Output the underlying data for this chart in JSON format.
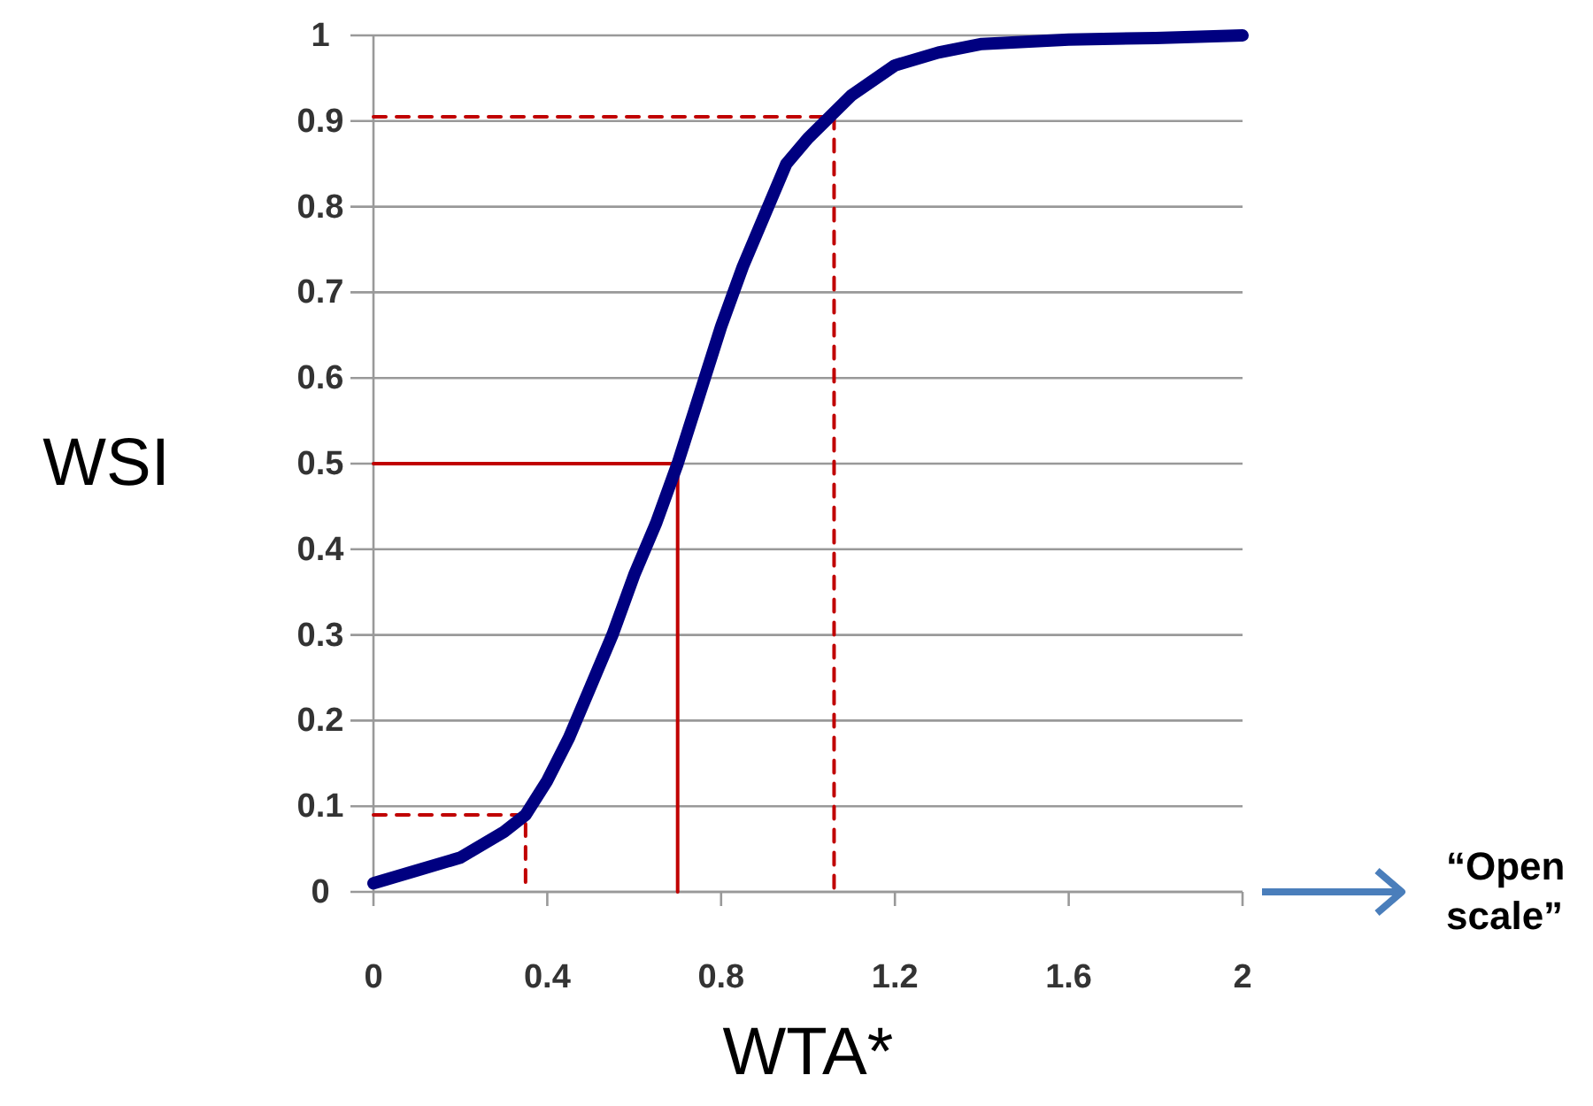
{
  "chart_data": {
    "type": "line",
    "xlabel": "WTA*",
    "ylabel": "WSI",
    "xlim": [
      0,
      2
    ],
    "ylim": [
      0,
      1
    ],
    "xticks": [
      0,
      0.4,
      0.8,
      1.2,
      1.6,
      2
    ],
    "yticks": [
      0,
      0.1,
      0.2,
      0.3,
      0.4,
      0.5,
      0.6,
      0.7,
      0.8,
      0.9,
      1
    ],
    "grid": "y",
    "marker": "none",
    "annotations": [
      "“Open scale”"
    ],
    "series": [
      {
        "color": "#000080",
        "line_style": "solid",
        "x": [
          0,
          0.1,
          0.2,
          0.3,
          0.35,
          0.4,
          0.45,
          0.5,
          0.55,
          0.6,
          0.65,
          0.7,
          0.75,
          0.8,
          0.85,
          0.9,
          0.95,
          1.0,
          1.05,
          1.1,
          1.2,
          1.3,
          1.4,
          1.6,
          1.8,
          2.0
        ],
        "values": [
          0.01,
          0.025,
          0.04,
          0.07,
          0.09,
          0.13,
          0.18,
          0.24,
          0.3,
          0.37,
          0.43,
          0.5,
          0.58,
          0.66,
          0.73,
          0.79,
          0.85,
          0.88,
          0.905,
          0.93,
          0.965,
          0.98,
          0.99,
          0.995,
          0.997,
          1.0
        ]
      },
      {
        "color": "#c00000",
        "line_style": "solid",
        "x": [
          0,
          0.7,
          0.7
        ],
        "values": [
          0.5,
          0.5,
          0
        ]
      },
      {
        "color": "#c00000",
        "line_style": "dashed",
        "x": [
          0,
          0.35,
          0.35
        ],
        "values": [
          0.09,
          0.09,
          0
        ]
      },
      {
        "color": "#c00000",
        "line_style": "dashed",
        "x": [
          0,
          1.06,
          1.06
        ],
        "values": [
          0.905,
          0.905,
          0
        ]
      }
    ]
  }
}
